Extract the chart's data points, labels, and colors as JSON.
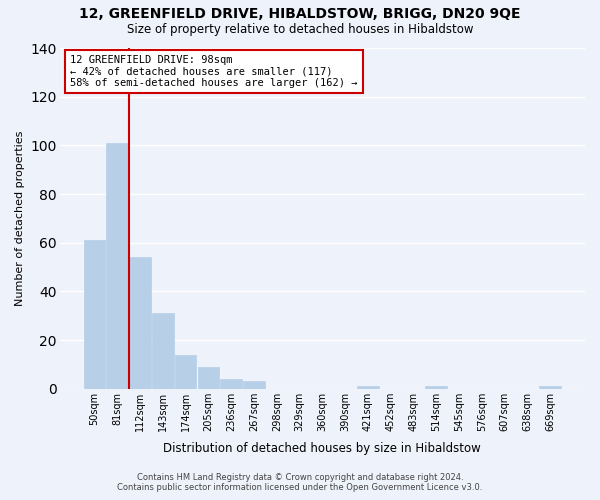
{
  "title": "12, GREENFIELD DRIVE, HIBALDSTOW, BRIGG, DN20 9QE",
  "subtitle": "Size of property relative to detached houses in Hibaldstow",
  "xlabel": "Distribution of detached houses by size in Hibaldstow",
  "ylabel": "Number of detached properties",
  "bar_labels": [
    "50sqm",
    "81sqm",
    "112sqm",
    "143sqm",
    "174sqm",
    "205sqm",
    "236sqm",
    "267sqm",
    "298sqm",
    "329sqm",
    "360sqm",
    "390sqm",
    "421sqm",
    "452sqm",
    "483sqm",
    "514sqm",
    "545sqm",
    "576sqm",
    "607sqm",
    "638sqm",
    "669sqm"
  ],
  "bar_values": [
    61,
    101,
    54,
    31,
    14,
    9,
    4,
    3,
    0,
    0,
    0,
    0,
    1,
    0,
    0,
    1,
    0,
    0,
    0,
    0,
    1
  ],
  "bar_color": "#b8cfe8",
  "bar_edge_color": "#b8cfe8",
  "vline_color": "#cc0000",
  "annotation_title": "12 GREENFIELD DRIVE: 98sqm",
  "annotation_line1": "← 42% of detached houses are smaller (117)",
  "annotation_line2": "58% of semi-detached houses are larger (162) →",
  "annotation_box_color": "#ffffff",
  "annotation_box_edge": "#cc0000",
  "ylim": [
    0,
    140
  ],
  "yticks": [
    0,
    20,
    40,
    60,
    80,
    100,
    120,
    140
  ],
  "footer1": "Contains HM Land Registry data © Crown copyright and database right 2024.",
  "footer2": "Contains public sector information licensed under the Open Government Licence v3.0.",
  "bg_color": "#eef2fa",
  "grid_color": "#ffffff"
}
